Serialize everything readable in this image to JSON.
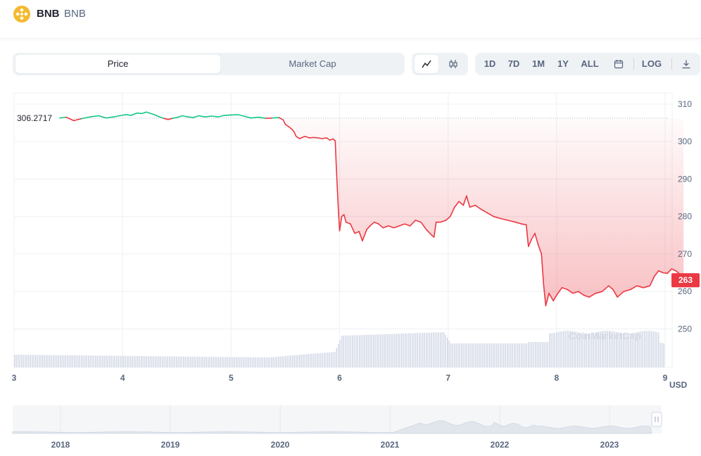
{
  "header": {
    "coin_name": "BNB",
    "coin_symbol": "BNB"
  },
  "toolbar": {
    "tabs": [
      {
        "label": "Price",
        "active": true
      },
      {
        "label": "Market Cap",
        "active": false
      }
    ],
    "chart_types": [
      {
        "icon": "line-chart-icon",
        "active": true
      },
      {
        "icon": "candlestick-icon",
        "active": false
      }
    ],
    "ranges": [
      "1D",
      "7D",
      "1M",
      "1Y",
      "ALL"
    ],
    "calendar_icon": "calendar-icon",
    "log_label": "LOG",
    "download_icon": "download-icon"
  },
  "colors": {
    "up": "#16c784",
    "down": "#ea3943",
    "grid": "#eef0f3",
    "axis_text": "#58667e",
    "volume": "#cfd6e4"
  },
  "chart_data": {
    "type": "line",
    "x_ticks": [
      "3",
      "4",
      "5",
      "6",
      "7",
      "8",
      "9"
    ],
    "x_ticks_pos": [
      3,
      4,
      5,
      6,
      7,
      8,
      9
    ],
    "xlim": [
      3,
      9
    ],
    "y_ticks": [
      250,
      260,
      270,
      280,
      290,
      300,
      310
    ],
    "ylim": [
      242,
      313
    ],
    "currency_label": "USD",
    "reference_price": "306.2717",
    "reference_value": 306.2717,
    "current_price_label": "263",
    "current_value": 263,
    "watermark": "CoinMarketCap",
    "series": [
      {
        "values": [
          [
            3.42,
            306.3
          ],
          [
            3.48,
            306.5
          ],
          [
            3.55,
            305.6
          ],
          [
            3.62,
            306.1
          ],
          [
            3.7,
            306.6
          ],
          [
            3.78,
            306.9
          ],
          [
            3.85,
            306.3
          ],
          [
            3.92,
            306.6
          ],
          [
            3.97,
            306.9
          ],
          [
            4.03,
            307.2
          ],
          [
            4.08,
            307.0
          ],
          [
            4.13,
            307.6
          ],
          [
            4.18,
            307.5
          ],
          [
            4.22,
            307.9
          ],
          [
            4.26,
            307.5
          ],
          [
            4.3,
            307.1
          ],
          [
            4.34,
            306.6
          ],
          [
            4.38,
            306.2
          ],
          [
            4.42,
            305.9
          ],
          [
            4.46,
            306.2
          ],
          [
            4.5,
            306.4
          ],
          [
            4.55,
            306.9
          ],
          [
            4.6,
            306.6
          ],
          [
            4.65,
            306.4
          ],
          [
            4.7,
            306.9
          ],
          [
            4.76,
            306.6
          ],
          [
            4.82,
            306.8
          ],
          [
            4.88,
            306.6
          ],
          [
            4.94,
            307.0
          ],
          [
            5.0,
            307.1
          ],
          [
            5.06,
            307.2
          ],
          [
            5.12,
            306.8
          ],
          [
            5.18,
            306.3
          ],
          [
            5.25,
            306.5
          ],
          [
            5.32,
            306.2
          ],
          [
            5.38,
            306.3
          ],
          [
            5.44,
            306.4
          ],
          [
            5.48,
            305.8
          ],
          [
            5.5,
            304.6
          ],
          [
            5.53,
            304.0
          ],
          [
            5.56,
            303.3
          ],
          [
            5.58,
            302.6
          ],
          [
            5.6,
            301.4
          ],
          [
            5.63,
            300.8
          ],
          [
            5.68,
            301.4
          ],
          [
            5.72,
            301.0
          ],
          [
            5.76,
            301.1
          ],
          [
            5.8,
            301.0
          ],
          [
            5.84,
            300.8
          ],
          [
            5.88,
            301.0
          ],
          [
            5.91,
            300.4
          ],
          [
            5.94,
            300.7
          ],
          [
            5.96,
            300.2
          ],
          [
            5.97,
            293.0
          ],
          [
            5.98,
            287.0
          ],
          [
            5.99,
            281.0
          ],
          [
            6.0,
            276.2
          ],
          [
            6.02,
            280.0
          ],
          [
            6.04,
            280.5
          ],
          [
            6.06,
            278.5
          ],
          [
            6.1,
            278.0
          ],
          [
            6.14,
            275.5
          ],
          [
            6.18,
            276.0
          ],
          [
            6.21,
            273.5
          ],
          [
            6.25,
            276.5
          ],
          [
            6.28,
            277.5
          ],
          [
            6.32,
            278.5
          ],
          [
            6.36,
            278.0
          ],
          [
            6.4,
            277.0
          ],
          [
            6.45,
            277.5
          ],
          [
            6.5,
            277.0
          ],
          [
            6.55,
            277.5
          ],
          [
            6.6,
            278.0
          ],
          [
            6.65,
            277.5
          ],
          [
            6.7,
            279.0
          ],
          [
            6.75,
            278.5
          ],
          [
            6.8,
            276.5
          ],
          [
            6.85,
            275.0
          ],
          [
            6.87,
            274.5
          ],
          [
            6.89,
            278.5
          ],
          [
            6.93,
            278.5
          ],
          [
            6.98,
            279.0
          ],
          [
            7.02,
            280.0
          ],
          [
            7.06,
            282.5
          ],
          [
            7.1,
            284.0
          ],
          [
            7.14,
            283.0
          ],
          [
            7.17,
            285.5
          ],
          [
            7.2,
            282.5
          ],
          [
            7.25,
            283.0
          ],
          [
            7.3,
            282.0
          ],
          [
            7.36,
            281.0
          ],
          [
            7.42,
            280.0
          ],
          [
            7.48,
            279.5
          ],
          [
            7.55,
            279.0
          ],
          [
            7.62,
            278.5
          ],
          [
            7.68,
            278.0
          ],
          [
            7.72,
            277.8
          ],
          [
            7.74,
            272.0
          ],
          [
            7.77,
            274.0
          ],
          [
            7.8,
            275.5
          ],
          [
            7.83,
            272.5
          ],
          [
            7.86,
            270.0
          ],
          [
            7.88,
            262.0
          ],
          [
            7.9,
            256.2
          ],
          [
            7.93,
            259.5
          ],
          [
            7.97,
            257.5
          ],
          [
            8.0,
            259.0
          ],
          [
            8.05,
            261.0
          ],
          [
            8.1,
            260.5
          ],
          [
            8.15,
            259.5
          ],
          [
            8.2,
            260.0
          ],
          [
            8.25,
            259.0
          ],
          [
            8.3,
            258.5
          ],
          [
            8.36,
            259.5
          ],
          [
            8.42,
            260.0
          ],
          [
            8.48,
            261.5
          ],
          [
            8.52,
            260.5
          ],
          [
            8.56,
            258.5
          ],
          [
            8.62,
            260.0
          ],
          [
            8.68,
            260.5
          ],
          [
            8.74,
            261.5
          ],
          [
            8.8,
            261.0
          ],
          [
            8.86,
            261.5
          ],
          [
            8.9,
            264.0
          ],
          [
            8.94,
            265.5
          ],
          [
            8.98,
            265.0
          ],
          [
            9.02,
            264.8
          ],
          [
            9.06,
            266.0
          ],
          [
            9.1,
            265.5
          ],
          [
            9.14,
            264.5
          ],
          [
            9.17,
            263.0
          ]
        ]
      }
    ],
    "navigator": {
      "x_ticks": [
        "2018",
        "2019",
        "2020",
        "2021",
        "2022",
        "2023"
      ]
    }
  }
}
